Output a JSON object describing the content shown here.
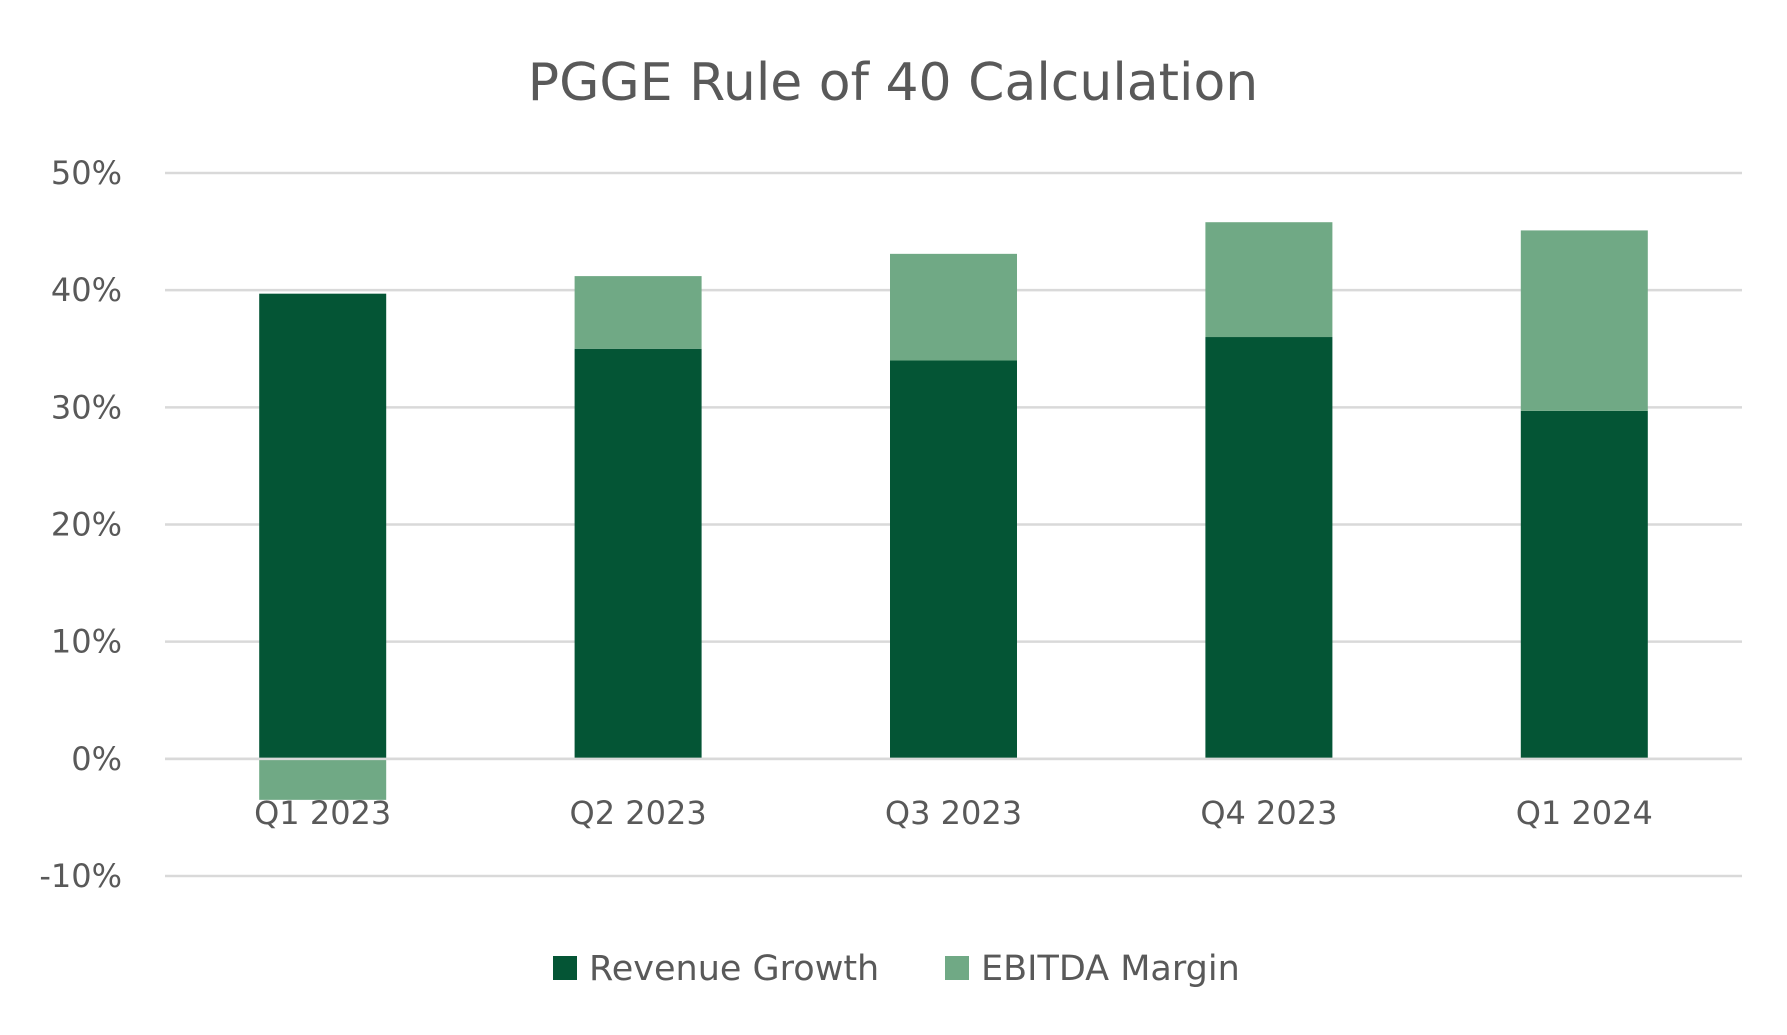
{
  "chart_data": {
    "type": "bar",
    "stacked": true,
    "title": "PGGE Rule of 40 Calculation",
    "xlabel": "",
    "ylabel": "",
    "categories": [
      "Q1 2023",
      "Q2 2023",
      "Q3 2023",
      "Q4 2023",
      "Q1 2024"
    ],
    "series": [
      {
        "name": "Revenue Growth",
        "color": "#045535",
        "values": [
          39.7,
          35.0,
          34.0,
          36.0,
          29.7
        ]
      },
      {
        "name": "EBITDA Margin",
        "color": "#70a985",
        "values": [
          -3.5,
          6.2,
          9.1,
          9.8,
          15.4
        ]
      }
    ],
    "ylim": [
      -10,
      50
    ],
    "yticks": [
      50,
      40,
      30,
      20,
      10,
      0,
      -10
    ],
    "ytick_labels": [
      "50%",
      "40%",
      "30%",
      "20%",
      "10%",
      "0%",
      "-10%"
    ],
    "grid": true,
    "legend_position": "bottom"
  }
}
